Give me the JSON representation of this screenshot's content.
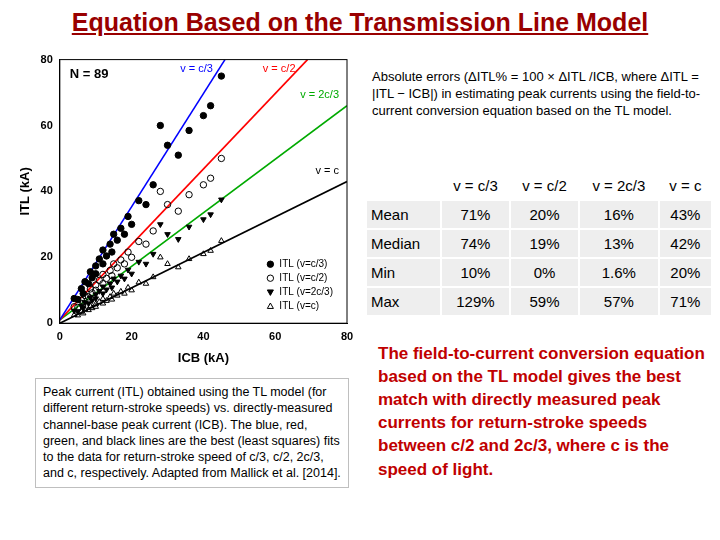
{
  "header": {
    "title": "Equation Based on the Transmission Line Model"
  },
  "chart_data": {
    "type": "scatter",
    "xlabel": "ICB (kA)",
    "ylabel": "ITL (kA)",
    "annotations": [
      "N = 89"
    ],
    "x": [
      4,
      5,
      6,
      6.5,
      7,
      8,
      8.5,
      9,
      10,
      10,
      11,
      12,
      12,
      13,
      14,
      14.5,
      15,
      16,
      17,
      18,
      19,
      20,
      22,
      24,
      26,
      28,
      30,
      33,
      36,
      40,
      42,
      45
    ],
    "series": [
      {
        "name": "ITL (v=c/3)",
        "color": "#000000",
        "marker": "circle",
        "values": [
          7.5,
          7.2,
          10.5,
          9,
          12.6,
          12,
          15.6,
          13.8,
          17.4,
          15,
          19.5,
          18,
          22.2,
          20.4,
          24,
          21.6,
          27,
          25.2,
          28.8,
          27,
          32.4,
          30,
          37.2,
          36,
          42,
          60,
          54,
          51,
          58.5,
          63,
          66,
          75
        ]
      },
      {
        "name": "ITL (v=c/2)",
        "color": "#000000",
        "marker": "circle-open",
        "values": [
          5,
          4.8,
          7,
          6,
          8.4,
          8,
          10.4,
          9.2,
          11.6,
          10,
          13,
          12,
          14.8,
          13.6,
          16,
          14.4,
          18,
          16.8,
          19.2,
          18,
          21.6,
          20,
          24.8,
          24,
          28,
          40,
          36,
          34,
          39,
          42,
          44,
          50
        ]
      },
      {
        "name": "ITL (v=2c/3)",
        "color": "#000000",
        "marker": "triangle-down",
        "values": [
          3.75,
          3.6,
          5.25,
          4.5,
          6.3,
          6,
          7.8,
          6.9,
          8.7,
          7.5,
          9.75,
          9,
          11.1,
          10.2,
          12,
          10.8,
          13.5,
          12.6,
          14.4,
          13.5,
          16.2,
          15,
          18.6,
          18,
          21,
          30,
          27,
          25.5,
          29.25,
          31.5,
          33,
          37.5
        ]
      },
      {
        "name": "ITL (v=c)",
        "color": "#000000",
        "marker": "triangle-open",
        "values": [
          2.5,
          2.4,
          3.5,
          3.0,
          4.2,
          4.0,
          5.2,
          4.6,
          5.8,
          5.0,
          6.5,
          6.0,
          7.4,
          6.8,
          8.0,
          7.2,
          9.0,
          8.4,
          9.6,
          9.0,
          10.8,
          10.0,
          12.4,
          12.0,
          14.0,
          20.0,
          18.0,
          17.0,
          19.5,
          21.0,
          22.0,
          25.0
        ]
      }
    ],
    "fit_lines": [
      {
        "name": "v = c/3",
        "color": "#0000ff",
        "line_style": "solid",
        "x": [
          0,
          46
        ],
        "values": [
          1,
          80
        ]
      },
      {
        "name": "v = c/2",
        "color": "#ff0000",
        "line_style": "solid",
        "x": [
          0,
          69
        ],
        "values": [
          1,
          80
        ]
      },
      {
        "name": "v = 2c/3",
        "color": "#00aa00",
        "line_style": "solid",
        "x": [
          0,
          80
        ],
        "values": [
          1,
          66
        ]
      },
      {
        "name": "v = c",
        "color": "#000000",
        "line_style": "solid",
        "x": [
          0,
          80
        ],
        "values": [
          0,
          43
        ]
      }
    ],
    "xlim": [
      0,
      80
    ],
    "xticks": [
      0,
      20,
      40,
      60,
      80
    ],
    "ylim": [
      0,
      80
    ],
    "yticks": [
      0,
      20,
      40,
      60,
      80
    ],
    "grid": false,
    "legend": "lower right"
  },
  "description": "Absolute errors (ΔITL% = 100 × ΔITL /ICB, where ΔITL = |ITL − ICB|) in estimating peak currents using the field-to-current conversion equation based on the TL model.",
  "table": {
    "header": [
      null,
      "v = c/3",
      "v = c/2",
      "v = 2c/3",
      "v = c"
    ],
    "rows": [
      [
        "Mean",
        "71%",
        "20%",
        "16%",
        "43%"
      ],
      [
        "Median",
        "74%",
        "19%",
        "13%",
        "42%"
      ],
      [
        "Min",
        "10%",
        "0%",
        "1.6%",
        "20%"
      ],
      [
        "Max",
        "129%",
        "59%",
        "57%",
        "71%"
      ]
    ]
  },
  "caption": "Peak current (ITL) obtained using the TL model (for different return-stroke speeds) vs. directly-measured channel-base peak current (ICB). The blue, red, green, and black lines are the best (least squares) fits to the data for return-stroke speed of c/3, c/2, 2c/3, and c, respectively. Adapted from Mallick et al. [2014].",
  "conclusion": "The field-to-current conversion equation based on the TL model gives the best match with directly measured peak currents for return-stroke speeds between c/2 and 2c/3, where c is the speed of light."
}
